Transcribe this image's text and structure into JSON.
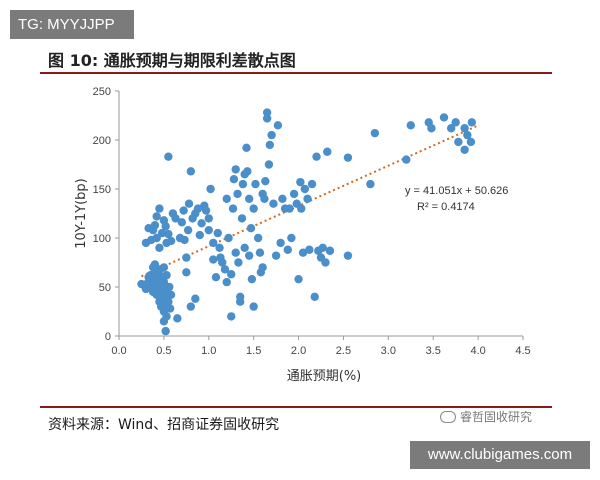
{
  "tag_top": "TG: MYYJJPP",
  "figure_title": "图 10:  通胀预期与期限利差散点图",
  "source": "资料来源：Wind、招商证券固收研究",
  "watermark": "睿哲固收研究",
  "tag_bottom": "www.clubigames.com",
  "colors": {
    "point": "#4a8fc9",
    "trendline": "#d2691e",
    "rule": "#8b1a1a",
    "tag_bg": "#7b7b7b"
  },
  "chart_data": {
    "type": "scatter",
    "xlabel": "通胀预期(%)",
    "ylabel": "10Y-1Y(bp)",
    "xlim": [
      0,
      4.5
    ],
    "ylim": [
      0,
      250
    ],
    "xticks": [
      "0.0",
      "0.5",
      "1.0",
      "1.5",
      "2.0",
      "2.5",
      "3.0",
      "3.5",
      "4.0",
      "4.5"
    ],
    "yticks": [
      "0",
      "50",
      "100",
      "150",
      "200",
      "250"
    ],
    "grid": false,
    "trendline": {
      "slope": 41.051,
      "intercept": 50.626,
      "x_range": [
        0.25,
        4.0
      ],
      "style": "dotted"
    },
    "annotations": [
      "y = 41.051x + 50.626",
      "R² = 0.4174"
    ],
    "points": [
      [
        0.25,
        53
      ],
      [
        0.28,
        52
      ],
      [
        0.3,
        48
      ],
      [
        0.32,
        54
      ],
      [
        0.33,
        60
      ],
      [
        0.35,
        50
      ],
      [
        0.35,
        62
      ],
      [
        0.37,
        55
      ],
      [
        0.38,
        70
      ],
      [
        0.38,
        45
      ],
      [
        0.4,
        58
      ],
      [
        0.4,
        65
      ],
      [
        0.4,
        73
      ],
      [
        0.42,
        48
      ],
      [
        0.42,
        42
      ],
      [
        0.43,
        55
      ],
      [
        0.43,
        62
      ],
      [
        0.44,
        50
      ],
      [
        0.45,
        35
      ],
      [
        0.45,
        40
      ],
      [
        0.45,
        57
      ],
      [
        0.46,
        68
      ],
      [
        0.47,
        45
      ],
      [
        0.47,
        30
      ],
      [
        0.48,
        52
      ],
      [
        0.48,
        60
      ],
      [
        0.49,
        38
      ],
      [
        0.5,
        25
      ],
      [
        0.5,
        15
      ],
      [
        0.5,
        43
      ],
      [
        0.5,
        55
      ],
      [
        0.5,
        70
      ],
      [
        0.51,
        33
      ],
      [
        0.52,
        5
      ],
      [
        0.52,
        48
      ],
      [
        0.53,
        20
      ],
      [
        0.53,
        62
      ],
      [
        0.54,
        40
      ],
      [
        0.55,
        183
      ],
      [
        0.55,
        35
      ],
      [
        0.56,
        50
      ],
      [
        0.57,
        28
      ],
      [
        0.58,
        42
      ],
      [
        0.3,
        95
      ],
      [
        0.33,
        110
      ],
      [
        0.36,
        98
      ],
      [
        0.38,
        108
      ],
      [
        0.4,
        113
      ],
      [
        0.42,
        122
      ],
      [
        0.42,
        100
      ],
      [
        0.45,
        130
      ],
      [
        0.45,
        90
      ],
      [
        0.48,
        105
      ],
      [
        0.5,
        118
      ],
      [
        0.52,
        112
      ],
      [
        0.53,
        95
      ],
      [
        0.55,
        104
      ],
      [
        0.58,
        97
      ],
      [
        0.6,
        125
      ],
      [
        0.63,
        120
      ],
      [
        0.65,
        18
      ],
      [
        0.68,
        100
      ],
      [
        0.7,
        116
      ],
      [
        0.72,
        128
      ],
      [
        0.73,
        98
      ],
      [
        0.75,
        80
      ],
      [
        0.75,
        65
      ],
      [
        0.77,
        108
      ],
      [
        0.78,
        135
      ],
      [
        0.8,
        168
      ],
      [
        0.8,
        30
      ],
      [
        0.82,
        120
      ],
      [
        0.85,
        38
      ],
      [
        0.85,
        125
      ],
      [
        0.88,
        130
      ],
      [
        0.9,
        103
      ],
      [
        0.92,
        115
      ],
      [
        0.95,
        133
      ],
      [
        0.97,
        128
      ],
      [
        1.0,
        120
      ],
      [
        1.0,
        108
      ],
      [
        1.02,
        150
      ],
      [
        1.05,
        78
      ],
      [
        1.05,
        95
      ],
      [
        1.08,
        60
      ],
      [
        1.1,
        105
      ],
      [
        1.12,
        90
      ],
      [
        1.13,
        80
      ],
      [
        1.15,
        75
      ],
      [
        1.18,
        68
      ],
      [
        1.2,
        55
      ],
      [
        1.2,
        140
      ],
      [
        1.22,
        100
      ],
      [
        1.25,
        63
      ],
      [
        1.25,
        20
      ],
      [
        1.27,
        130
      ],
      [
        1.28,
        160
      ],
      [
        1.3,
        170
      ],
      [
        1.3,
        85
      ],
      [
        1.32,
        145
      ],
      [
        1.33,
        75
      ],
      [
        1.35,
        35
      ],
      [
        1.35,
        40
      ],
      [
        1.37,
        120
      ],
      [
        1.38,
        155
      ],
      [
        1.4,
        165
      ],
      [
        1.4,
        90
      ],
      [
        1.42,
        192
      ],
      [
        1.43,
        168
      ],
      [
        1.45,
        140
      ],
      [
        1.45,
        82
      ],
      [
        1.47,
        110
      ],
      [
        1.48,
        58
      ],
      [
        1.5,
        30
      ],
      [
        1.5,
        130
      ],
      [
        1.52,
        155
      ],
      [
        1.55,
        100
      ],
      [
        1.57,
        85
      ],
      [
        1.58,
        65
      ],
      [
        1.6,
        145
      ],
      [
        1.6,
        70
      ],
      [
        1.62,
        140
      ],
      [
        1.63,
        158
      ],
      [
        1.65,
        228
      ],
      [
        1.65,
        222
      ],
      [
        1.67,
        175
      ],
      [
        1.68,
        195
      ],
      [
        1.7,
        205
      ],
      [
        1.72,
        135
      ],
      [
        1.75,
        82
      ],
      [
        1.77,
        215
      ],
      [
        1.8,
        95
      ],
      [
        1.82,
        140
      ],
      [
        1.85,
        130
      ],
      [
        1.88,
        88
      ],
      [
        1.9,
        130
      ],
      [
        1.92,
        100
      ],
      [
        1.95,
        145
      ],
      [
        1.98,
        135
      ],
      [
        2.0,
        58
      ],
      [
        2.02,
        157
      ],
      [
        2.03,
        130
      ],
      [
        2.05,
        85
      ],
      [
        2.07,
        150
      ],
      [
        2.1,
        140
      ],
      [
        2.12,
        88
      ],
      [
        2.15,
        155
      ],
      [
        2.18,
        40
      ],
      [
        2.2,
        183
      ],
      [
        2.22,
        87
      ],
      [
        2.25,
        80
      ],
      [
        2.27,
        90
      ],
      [
        2.3,
        75
      ],
      [
        2.32,
        188
      ],
      [
        2.35,
        87
      ],
      [
        2.55,
        182
      ],
      [
        2.55,
        82
      ],
      [
        2.8,
        155
      ],
      [
        2.85,
        207
      ],
      [
        3.2,
        180
      ],
      [
        3.25,
        215
      ],
      [
        3.45,
        218
      ],
      [
        3.48,
        212
      ],
      [
        3.62,
        223
      ],
      [
        3.7,
        212
      ],
      [
        3.75,
        218
      ],
      [
        3.78,
        198
      ],
      [
        3.85,
        190
      ],
      [
        3.85,
        212
      ],
      [
        3.88,
        205
      ],
      [
        3.92,
        198
      ],
      [
        3.93,
        218
      ]
    ]
  }
}
